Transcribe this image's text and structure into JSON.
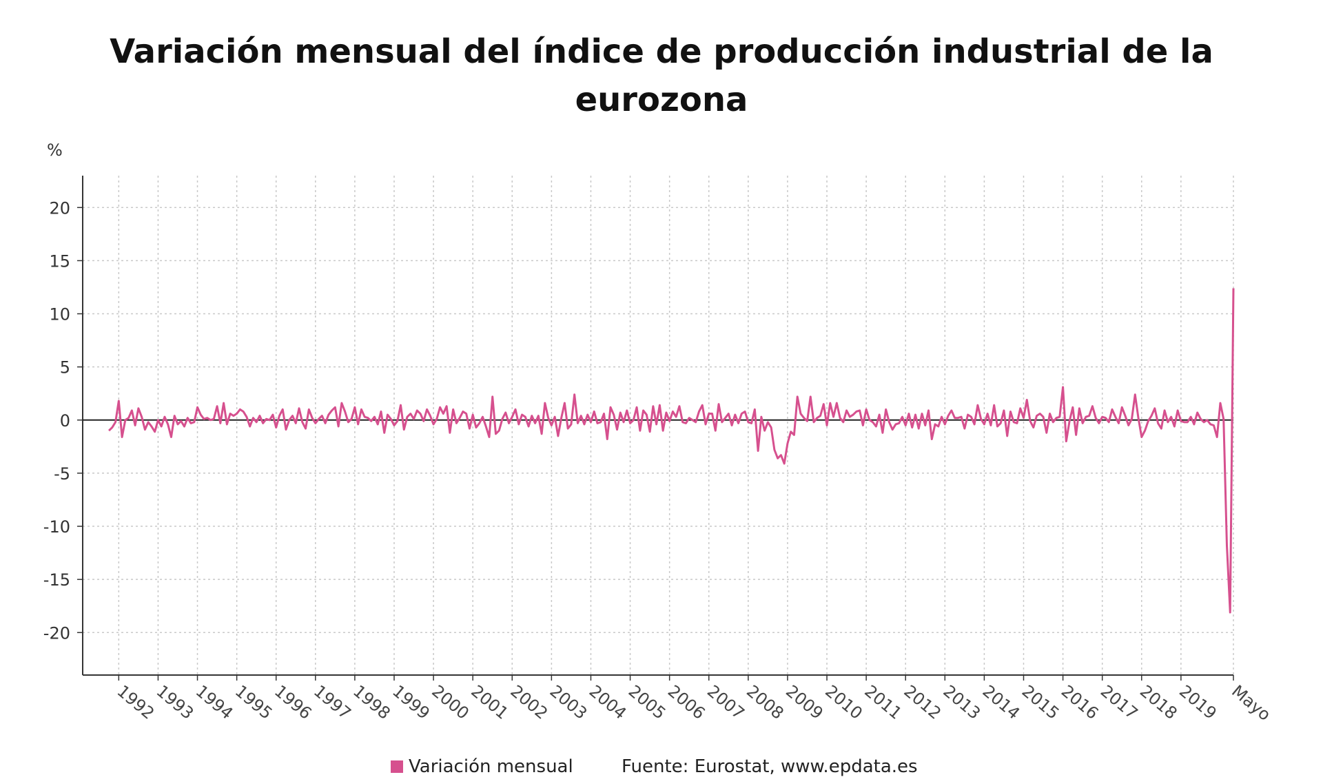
{
  "chart_data": {
    "type": "line",
    "title": "Variación mensual del índice de producción industrial de la eurozona",
    "title_lines": [
      "Variación mensual del índice de producción industrial de la",
      "eurozona"
    ],
    "ylabel": "%",
    "ylim": [
      -24,
      23
    ],
    "yticks": [
      20,
      15,
      10,
      5,
      0,
      -5,
      -10,
      -15,
      -20
    ],
    "ytick_labels": [
      "20",
      "15",
      "10",
      "5",
      "0",
      "-5",
      "-10",
      "-15",
      "-20"
    ],
    "x_start": "1991-02",
    "x_end": "2020-05",
    "xtick_labels": [
      "1992",
      "1993",
      "1994",
      "1995",
      "1996",
      "1997",
      "1998",
      "1999",
      "2000",
      "2001",
      "2002",
      "2003",
      "2004",
      "2005",
      "2006",
      "2007",
      "2008",
      "2009",
      "2010",
      "2011",
      "2012",
      "2013",
      "2014",
      "2015",
      "2016",
      "2017",
      "2018",
      "2019",
      "Mayo"
    ],
    "grid": true,
    "legend_position": "bottom",
    "series": [
      {
        "name": "Variación mensual",
        "color": "#d6508e",
        "values": [
          -1.0,
          -0.7,
          -0.2,
          1.8,
          -1.6,
          0.0,
          0.2,
          0.9,
          -0.5,
          1.1,
          0.3,
          -0.9,
          -0.2,
          -0.6,
          -1.1,
          0.0,
          -0.6,
          0.3,
          -0.4,
          -1.6,
          0.4,
          -0.4,
          -0.1,
          -0.6,
          0.2,
          -0.3,
          -0.2,
          1.2,
          0.5,
          0.1,
          0.2,
          0.0,
          0.1,
          1.3,
          -0.3,
          1.6,
          -0.4,
          0.6,
          0.4,
          0.6,
          1.0,
          0.8,
          0.3,
          -0.6,
          0.2,
          -0.2,
          0.4,
          -0.3,
          0.1,
          0.0,
          0.5,
          -0.7,
          0.4,
          1.0,
          -0.9,
          0.0,
          0.4,
          -0.3,
          1.1,
          -0.2,
          -0.8,
          1.0,
          0.2,
          -0.3,
          0.1,
          0.4,
          -0.3,
          0.5,
          0.9,
          1.2,
          -0.6,
          1.6,
          0.8,
          -0.2,
          0.1,
          1.2,
          -0.4,
          1.0,
          0.3,
          0.2,
          -0.1,
          0.3,
          -0.4,
          0.8,
          -1.2,
          0.5,
          0.1,
          -0.5,
          -0.1,
          1.4,
          -0.9,
          0.3,
          0.6,
          0.1,
          0.9,
          0.6,
          -0.1,
          1.0,
          0.4,
          -0.4,
          0.1,
          1.2,
          0.6,
          1.3,
          -1.2,
          1.0,
          -0.3,
          0.2,
          0.8,
          0.6,
          -0.8,
          0.5,
          -0.7,
          -0.3,
          0.3,
          -0.6,
          -1.6,
          2.2,
          -1.3,
          -1.0,
          0.1,
          0.7,
          -0.3,
          0.3,
          1.0,
          -0.4,
          0.5,
          0.3,
          -0.6,
          0.4,
          -0.3,
          0.4,
          -1.3,
          1.6,
          0.2,
          -0.5,
          0.3,
          -1.5,
          0.2,
          1.6,
          -0.8,
          -0.4,
          2.4,
          -0.3,
          0.4,
          -0.4,
          0.5,
          -0.2,
          0.8,
          -0.3,
          -0.2,
          0.6,
          -1.8,
          1.2,
          0.5,
          -0.9,
          0.7,
          -0.2,
          0.9,
          -0.3,
          0.0,
          1.2,
          -1.0,
          0.9,
          0.5,
          -1.1,
          1.3,
          -0.4,
          1.4,
          -1.0,
          0.7,
          -0.1,
          0.8,
          0.3,
          1.3,
          -0.2,
          -0.3,
          0.2,
          0.0,
          -0.2,
          0.8,
          1.4,
          -0.4,
          0.6,
          0.6,
          -1.0,
          1.5,
          -0.2,
          0.2,
          0.6,
          -0.5,
          0.5,
          -0.3,
          0.6,
          0.8,
          -0.2,
          -0.3,
          1.0,
          -2.9,
          0.3,
          -1.0,
          -0.2,
          -0.7,
          -2.8,
          -3.6,
          -3.3,
          -4.1,
          -2.2,
          -1.1,
          -1.4,
          2.2,
          0.6,
          0.2,
          -0.1,
          2.2,
          -0.2,
          0.2,
          0.4,
          1.5,
          -0.5,
          1.6,
          0.3,
          1.6,
          0.2,
          -0.2,
          0.9,
          0.3,
          0.5,
          0.8,
          0.9,
          -0.5,
          1.0,
          0.0,
          -0.2,
          -0.6,
          0.5,
          -1.2,
          1.0,
          -0.2,
          -0.9,
          -0.4,
          -0.3,
          0.3,
          -0.5,
          0.6,
          -0.7,
          0.5,
          -0.8,
          0.6,
          -0.5,
          0.9,
          -1.8,
          -0.4,
          -0.6,
          0.3,
          -0.4,
          0.4,
          0.9,
          0.2,
          0.2,
          0.3,
          -0.8,
          0.5,
          0.3,
          -0.4,
          1.4,
          0.1,
          -0.4,
          0.6,
          -0.5,
          1.4,
          -0.6,
          -0.3,
          0.9,
          -1.5,
          0.8,
          -0.2,
          -0.3,
          1.1,
          0.2,
          1.9,
          -0.1,
          -0.7,
          0.4,
          0.6,
          0.3,
          -1.2,
          0.6,
          -0.2,
          0.2,
          0.3,
          3.1,
          -2.0,
          -0.1,
          1.2,
          -1.4,
          1.1,
          -0.3,
          0.3,
          0.4,
          1.3,
          0.2,
          -0.3,
          0.3,
          0.2,
          -0.2,
          1.0,
          0.3,
          -0.3,
          1.2,
          0.4,
          -0.5,
          0.1,
          2.4,
          0.2,
          -1.6,
          -1.0,
          -0.1,
          0.4,
          1.1,
          -0.3,
          -0.8,
          0.9,
          -0.2,
          0.3,
          -0.6,
          0.9,
          -0.1,
          -0.2,
          -0.2,
          0.3,
          -0.4,
          0.7,
          0.1,
          -0.2,
          0.0,
          -0.4,
          -0.5,
          -1.6,
          1.6,
          0.1,
          -11.8,
          -18.1,
          12.4
        ]
      }
    ],
    "legend_label": "Variación mensual",
    "source": "Fuente: Eurostat, www.epdata.es"
  }
}
